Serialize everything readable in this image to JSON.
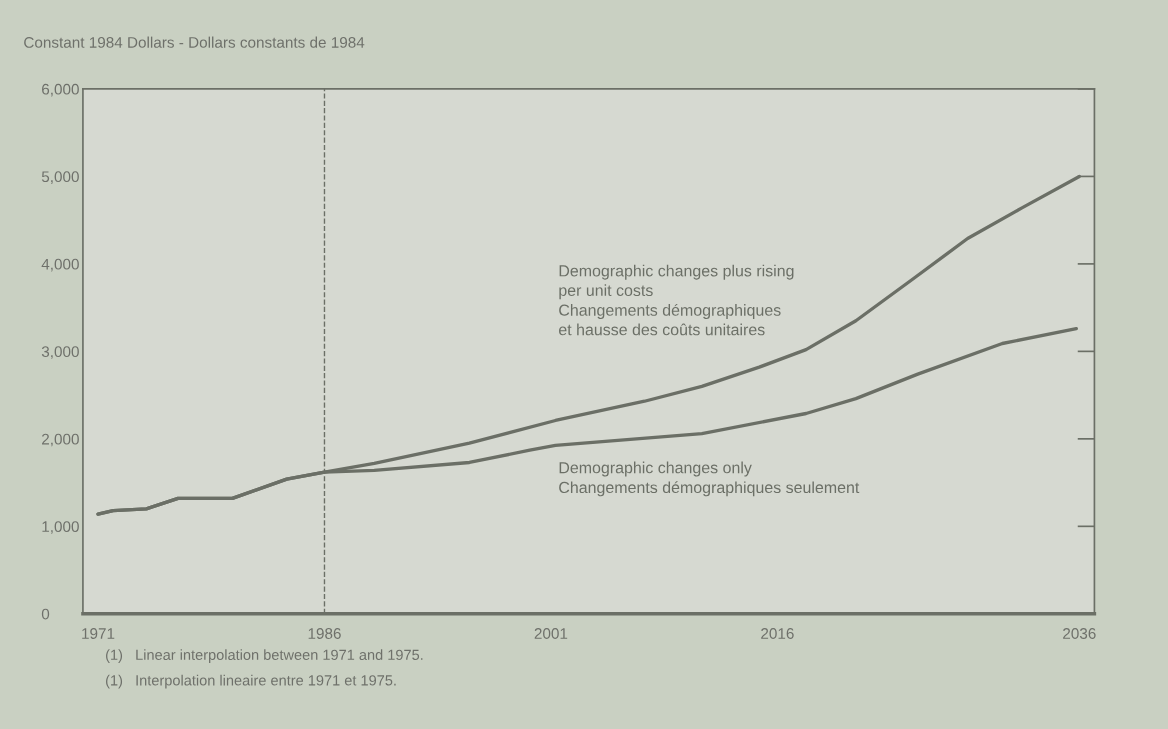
{
  "chart_data": {
    "type": "line",
    "ylabel": "Constant 1984 Dollars - Dollars constants de 1984",
    "xlim": [
      1970,
      2037
    ],
    "xticks": [
      1971,
      1986,
      2001,
      2016,
      2036
    ],
    "ylim": [
      0,
      6000
    ],
    "yticks": [
      {
        "value": 0,
        "label": "0"
      },
      {
        "value": 1000,
        "label": "1,000"
      },
      {
        "value": 2000,
        "label": "2,000"
      },
      {
        "value": 3000,
        "label": "3,000"
      },
      {
        "value": 4000,
        "label": "4,000"
      },
      {
        "value": 5000,
        "label": "5,000"
      },
      {
        "value": 6000,
        "label": "6,000"
      }
    ],
    "series": [
      {
        "name": "Demographic changes plus rising\nper unit costs\nChangements démographiques\net hausse des coûts unitaires",
        "color": "#6b6f66",
        "x": [
          1971,
          1972,
          1974.2,
          1976.3,
          1979.9,
          1983.5,
          1986,
          1989.3,
          1995.6,
          2001.3,
          2007.2,
          2011,
          2014.8,
          2017.9,
          2021.2,
          2025,
          2028.6,
          2032.2,
          2036
        ],
        "values": [
          1140,
          1180,
          1200,
          1320,
          1320,
          1540,
          1620,
          1720,
          1950,
          2210,
          2430,
          2600,
          2820,
          3020,
          3350,
          3830,
          4290,
          4640,
          5000
        ]
      },
      {
        "name": "Demographic changes only\nChangements démographiques seulement",
        "color": "#6b6f66",
        "x": [
          1971,
          1972,
          1974.2,
          1976.3,
          1979.9,
          1983.5,
          1986,
          1989.3,
          1995.6,
          1999.6,
          2001.3,
          2011,
          2017.9,
          2021.2,
          2025.3,
          2030.9,
          2035.8
        ],
        "values": [
          1140,
          1180,
          1200,
          1320,
          1320,
          1540,
          1620,
          1640,
          1730,
          1870,
          1925,
          2060,
          2290,
          2460,
          2740,
          3090,
          3260
        ]
      }
    ],
    "ref_lines": [
      {
        "axis": "x",
        "value": 1986,
        "line_style": "dashed",
        "color": "#6b6f66"
      }
    ],
    "annotations": [
      "(1)   Linear interpolation between 1971 and 1975.",
      "(1)   Interpolation lineaire entre 1971 et 1975."
    ],
    "grid": false,
    "legend": false,
    "marker": "none",
    "line_style": "solid"
  }
}
